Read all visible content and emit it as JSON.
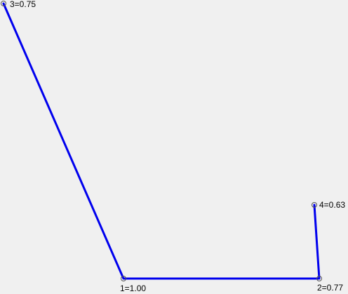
{
  "diagram": {
    "line_color": "#0000ee",
    "marker_color": "#555555",
    "nodes": [
      {
        "id": 1,
        "label": "1=1.00"
      },
      {
        "id": 2,
        "label": "2=0.77"
      },
      {
        "id": 3,
        "label": "3=0.75"
      },
      {
        "id": 4,
        "label": "4=0.63"
      }
    ],
    "path_order": [
      3,
      1,
      2,
      4
    ]
  }
}
